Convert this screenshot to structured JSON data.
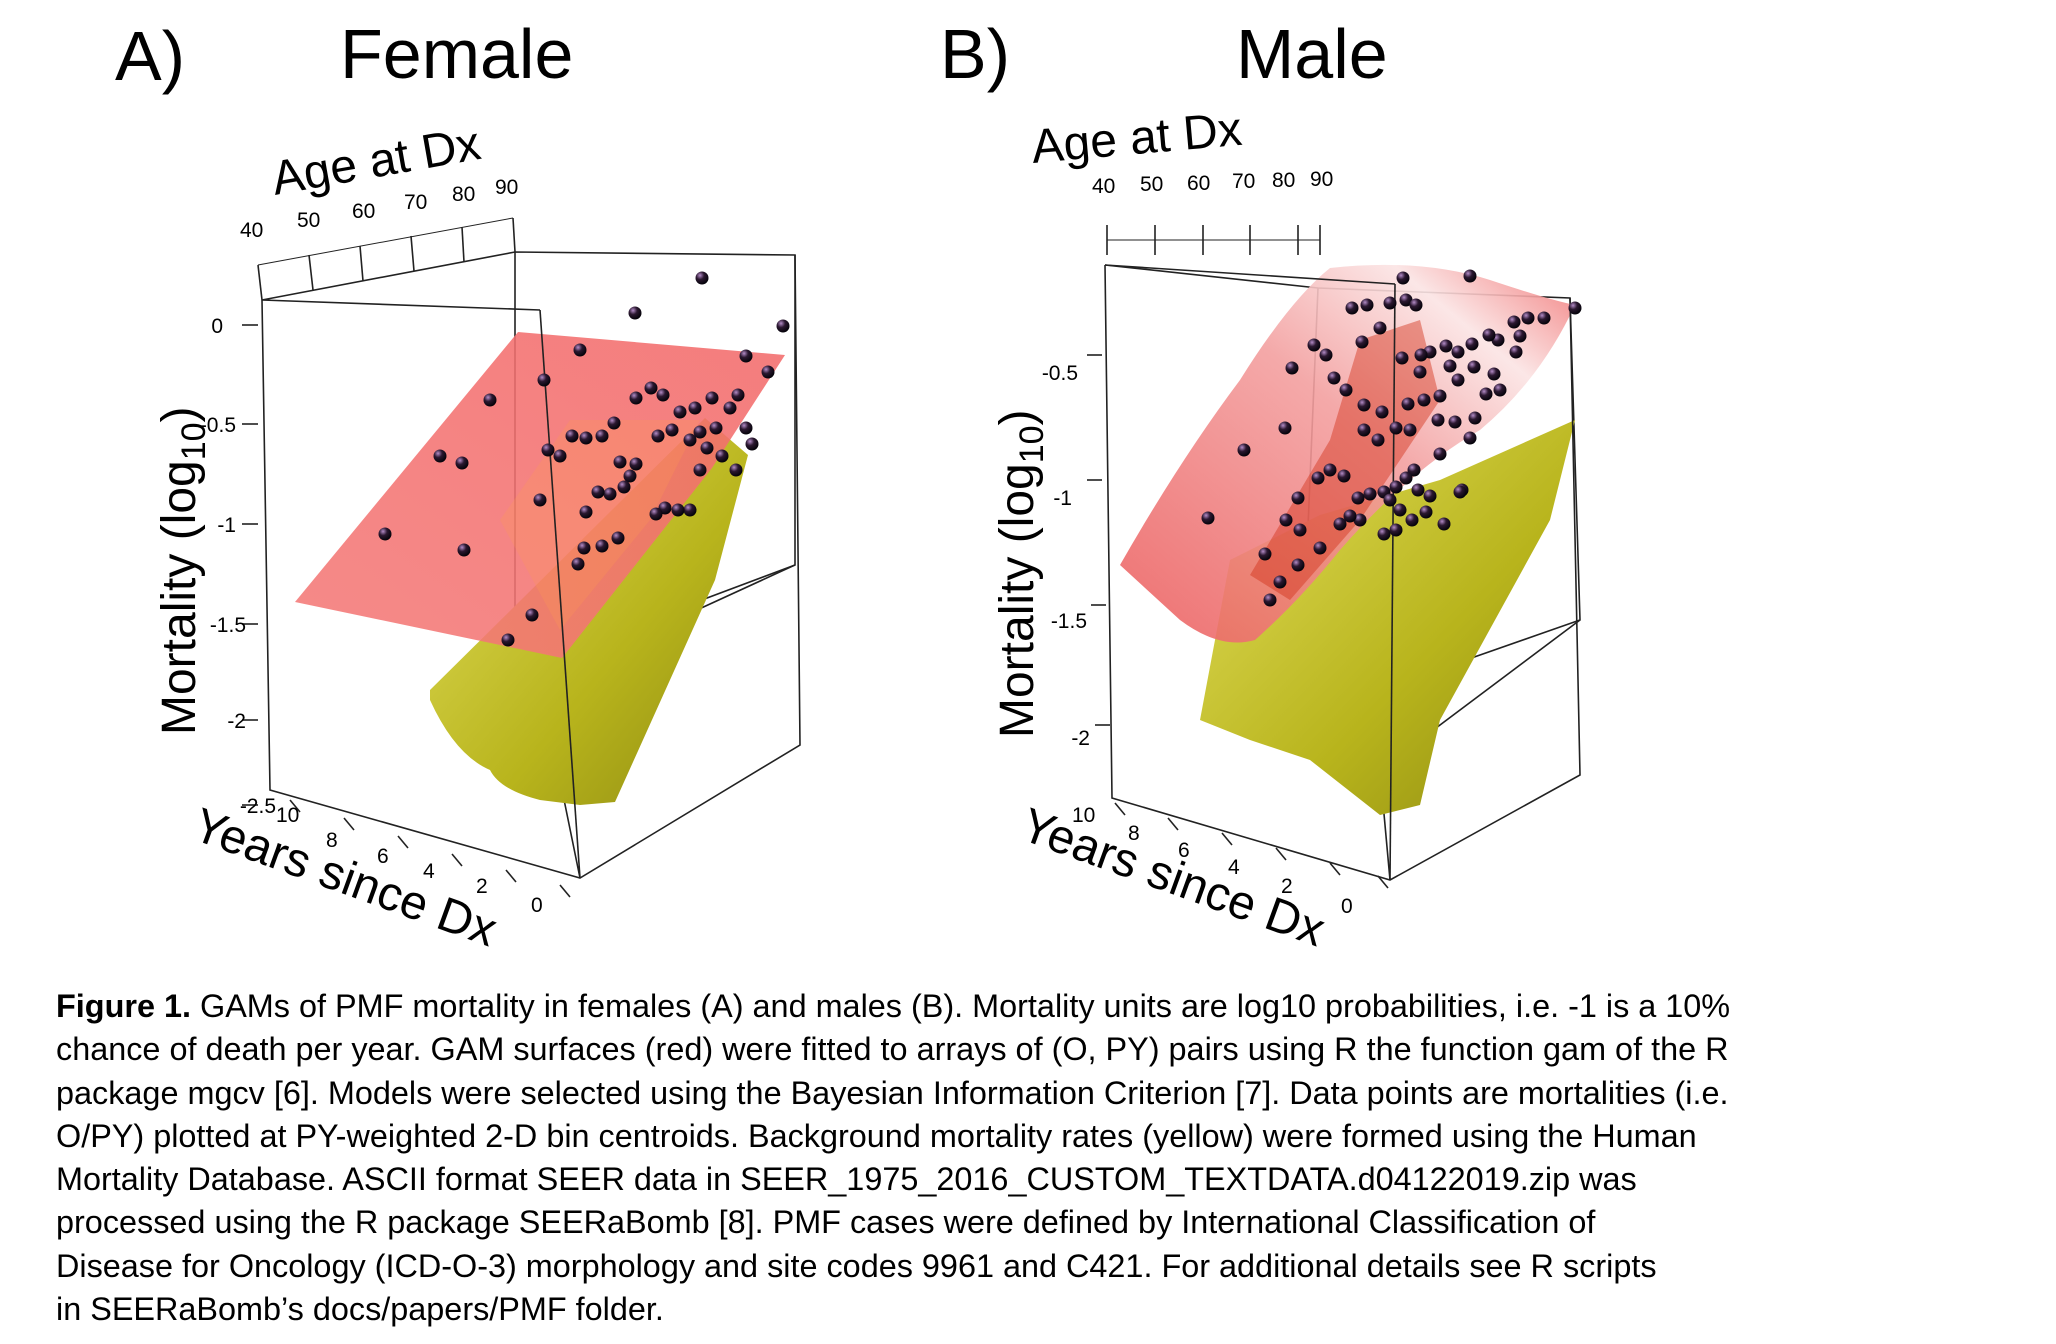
{
  "panels": [
    {
      "letter": "A)",
      "title": "Female",
      "age_label": "Age at Dx",
      "years_label": "Years since Dx",
      "mortality_label": "Mortality (log",
      "mortality_sub": "10",
      "mortality_close": ")",
      "age_ticks": [
        "40",
        "50",
        "60",
        "70",
        "80",
        "90"
      ],
      "mortality_ticks": [
        "0",
        "-0.5",
        "-1",
        "-1.5",
        "-2",
        "-2.5"
      ],
      "years_ticks": [
        "10",
        "8",
        "6",
        "4",
        "2",
        "0"
      ]
    },
    {
      "letter": "B)",
      "title": "Male",
      "age_label": "Age at Dx",
      "years_label": "Years since Dx",
      "mortality_label": "Mortality (log",
      "mortality_sub": "10",
      "mortality_close": ")",
      "age_ticks": [
        "40",
        "50",
        "60",
        "70",
        "80",
        "90"
      ],
      "mortality_ticks": [
        "-0.5",
        "-1",
        "-1.5",
        "-2"
      ],
      "years_ticks": [
        "10",
        "8",
        "6",
        "4",
        "2",
        "0"
      ]
    }
  ],
  "caption": {
    "label": "Figure 1.",
    "text": " GAMs of PMF mortality in females (A) and males (B). Mortality units are log10 probabilities, i.e. -1 is a 10%\nchance of death per year. GAM surfaces (red) were fitted to arrays of (O, PY) pairs using R the function gam of the R\npackage mgcv [6]. Models were selected using the Bayesian Information Criterion [7]. Data points are mortalities (i.e.\nO/PY) plotted at PY-weighted 2-D bin centroids. Background mortality rates (yellow) were formed using the Human\nMortality Database.  ASCII format SEER data in SEER_1975_2016_CUSTOM_TEXTDATA.d04122019.zip was\nprocessed using the R package SEERaBomb [8].   PMF cases were defined by International Classification of\nDisease for Oncology (ICD-O-3) morphology and site codes 9961 and C421. For additional details see R scripts\nin SEERaBomb’s docs/papers/PMF folder."
  },
  "colors": {
    "gam_surface": "#f06060",
    "background_surface": "#c7c42a",
    "points": "#1a0f1f",
    "box": "#222222"
  },
  "chart_data": [
    {
      "type": "scatter",
      "title": "Female",
      "xlabel": "Age at Dx",
      "ylabel": "Years since Dx",
      "zlabel": "Mortality (log10)",
      "x_ticks": [
        40,
        50,
        60,
        70,
        80,
        90
      ],
      "y_ticks": [
        10,
        8,
        6,
        4,
        2,
        0
      ],
      "z_ticks": [
        0,
        -0.5,
        -1,
        -1.5,
        -2,
        -2.5
      ],
      "surfaces": [
        {
          "name": "GAM surface",
          "color": "red"
        },
        {
          "name": "Background mortality",
          "color": "yellow"
        }
      ]
    },
    {
      "type": "scatter",
      "title": "Male",
      "xlabel": "Age at Dx",
      "ylabel": "Years since Dx",
      "zlabel": "Mortality (log10)",
      "x_ticks": [
        40,
        50,
        60,
        70,
        80,
        90
      ],
      "y_ticks": [
        10,
        8,
        6,
        4,
        2,
        0
      ],
      "z_ticks": [
        -0.5,
        -1,
        -1.5,
        -2
      ],
      "surfaces": [
        {
          "name": "GAM surface",
          "color": "red"
        },
        {
          "name": "Background mortality",
          "color": "yellow"
        }
      ]
    }
  ]
}
